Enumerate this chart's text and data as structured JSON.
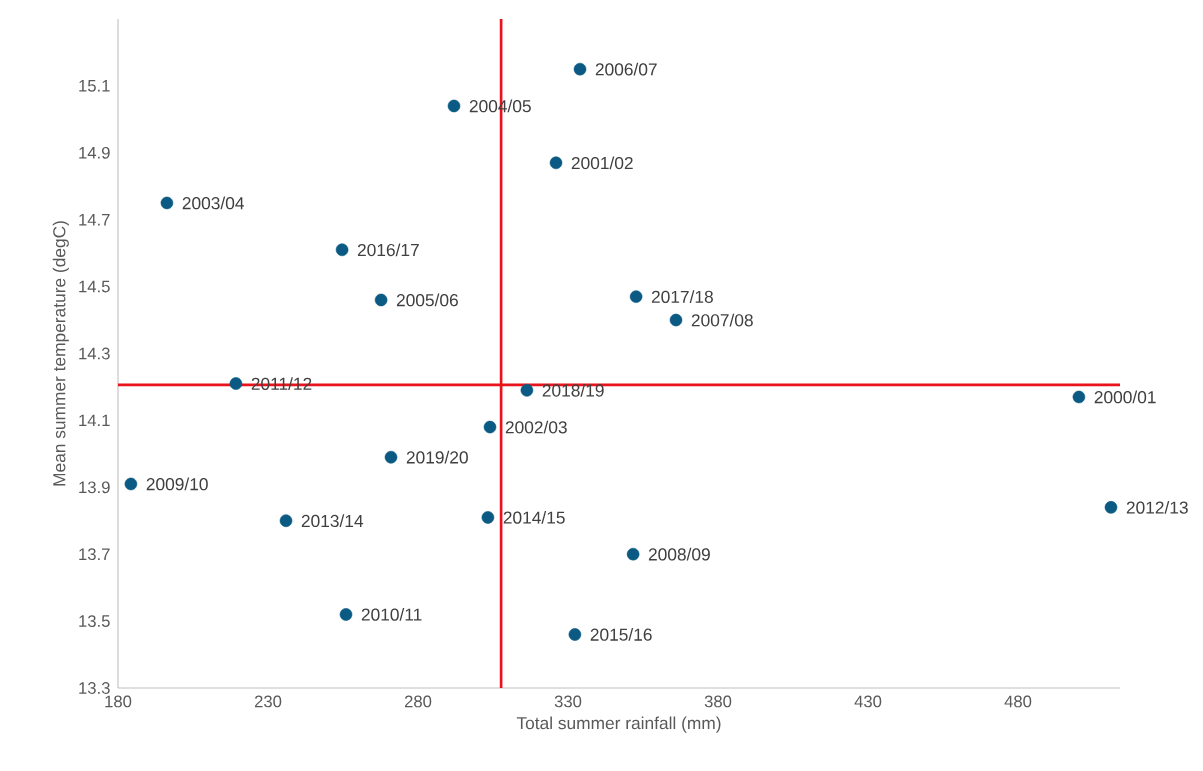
{
  "chart_data": {
    "type": "scatter",
    "xlabel": "Total summer rainfall (mm)",
    "ylabel": "Mean summer temperature (degC)",
    "xlim": [
      180,
      514
    ],
    "ylim": [
      13.3,
      15.3
    ],
    "xticks": [
      180,
      230,
      280,
      330,
      380,
      430,
      480
    ],
    "yticks": [
      13.3,
      13.5,
      13.7,
      13.9,
      14.1,
      14.3,
      14.5,
      14.7,
      14.9,
      15.1
    ],
    "grid": false,
    "series": [
      {
        "color": "#0b5a84",
        "x": [
          334,
          292,
          326,
          196.3,
          254.7,
          267.7,
          352.7,
          366,
          219.3,
          316.3,
          500.3,
          304,
          271,
          184.3,
          236,
          303.3,
          511,
          351.7,
          256,
          332.3
        ],
        "values": [
          15.15,
          15.04,
          14.87,
          14.75,
          14.61,
          14.46,
          14.47,
          14.4,
          14.21,
          14.19,
          14.17,
          14.08,
          13.99,
          13.91,
          13.8,
          13.81,
          13.84,
          13.7,
          13.52,
          13.46
        ]
      }
    ],
    "ref_lines": [
      {
        "axis": "x",
        "value": 307.7,
        "color": "#e8131b"
      },
      {
        "axis": "y",
        "value": 14.206,
        "color": "#e8131b"
      }
    ],
    "annotations": [
      {
        "text": "2006/07",
        "x": 334,
        "y": 15.15
      },
      {
        "text": "2004/05",
        "x": 292,
        "y": 15.04
      },
      {
        "text": "2001/02",
        "x": 326,
        "y": 14.87
      },
      {
        "text": "2003/04",
        "x": 196.3,
        "y": 14.75
      },
      {
        "text": "2016/17",
        "x": 254.7,
        "y": 14.61
      },
      {
        "text": "2005/06",
        "x": 267.7,
        "y": 14.46
      },
      {
        "text": "2017/18",
        "x": 352.7,
        "y": 14.47
      },
      {
        "text": "2007/08",
        "x": 366,
        "y": 14.4
      },
      {
        "text": "2011/12",
        "x": 219.3,
        "y": 14.21
      },
      {
        "text": "2018/19",
        "x": 316.3,
        "y": 14.19
      },
      {
        "text": "2000/01",
        "x": 500.3,
        "y": 14.17
      },
      {
        "text": "2002/03",
        "x": 304,
        "y": 14.08
      },
      {
        "text": "2019/20",
        "x": 271,
        "y": 13.99
      },
      {
        "text": "2009/10",
        "x": 184.3,
        "y": 13.91
      },
      {
        "text": "2013/14",
        "x": 236,
        "y": 13.8
      },
      {
        "text": "2014/15",
        "x": 303.3,
        "y": 13.81
      },
      {
        "text": "2012/13",
        "x": 511,
        "y": 13.84
      },
      {
        "text": "2008/09",
        "x": 351.7,
        "y": 13.7
      },
      {
        "text": "2010/11",
        "x": 256,
        "y": 13.52
      },
      {
        "text": "2015/16",
        "x": 332.3,
        "y": 13.46
      }
    ]
  }
}
